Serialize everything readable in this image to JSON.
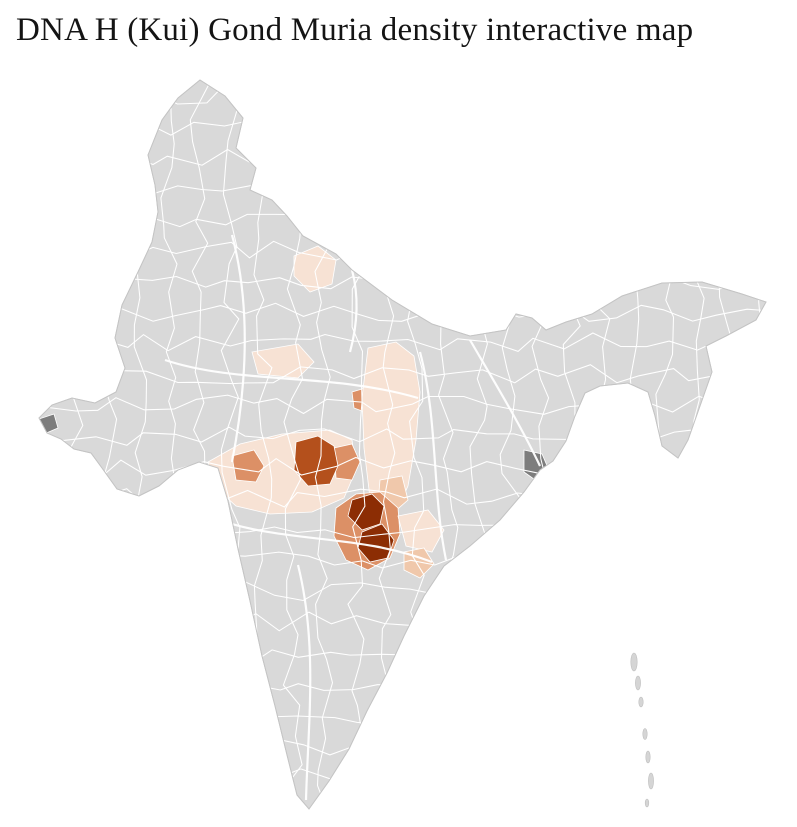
{
  "page": {
    "title": "DNA H (Kui) Gond Muria density interactive map"
  },
  "map": {
    "country": "India",
    "background": "#ffffff",
    "base_fill": "#d9d9d9",
    "border_color": "#ffffff",
    "outline_color": "#c4c4c4",
    "no_data_fill": "#7d7d7d",
    "island_fill": "#d5d5d5",
    "palette": {
      "level1": "#f7e2d4",
      "level2": "#f0c8ab",
      "level3": "#dc9066",
      "level4": "#b4501c",
      "level5": "#8c2d04"
    },
    "density_regions": [
      {
        "id": "north-patch",
        "level": "level1"
      },
      {
        "id": "west-central-band",
        "level": "level1"
      },
      {
        "id": "central-light-area",
        "level": "level1"
      },
      {
        "id": "central-medium-west",
        "level": "level3"
      },
      {
        "id": "central-dark",
        "level": "level4"
      },
      {
        "id": "central-medium-east",
        "level": "level3"
      },
      {
        "id": "upper-east-medium",
        "level": "level3"
      },
      {
        "id": "east-light-band",
        "level": "level1"
      },
      {
        "id": "east-band-inner",
        "level": "level2"
      },
      {
        "id": "southeast-medium-ring",
        "level": "level3"
      },
      {
        "id": "southeast-dark-north",
        "level": "level5"
      },
      {
        "id": "southeast-dark-south",
        "level": "level5"
      },
      {
        "id": "coastal-light-patch",
        "level": "level1"
      },
      {
        "id": "coastal-light-patch-2",
        "level": "level2"
      },
      {
        "id": "no-data-east",
        "level": "no_data"
      },
      {
        "id": "no-data-west",
        "level": "no_data"
      }
    ]
  }
}
